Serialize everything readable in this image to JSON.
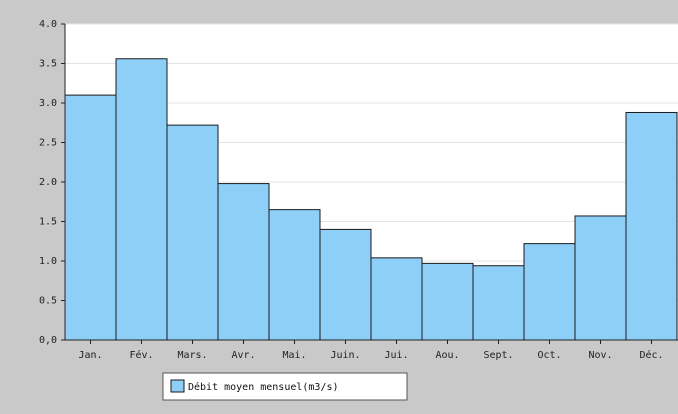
{
  "chart_data": {
    "type": "bar",
    "title": "",
    "xlabel": "",
    "ylabel": "",
    "categories": [
      "Jan.",
      "Fév.",
      "Mars.",
      "Avr.",
      "Mai.",
      "Juin.",
      "Jui.",
      "Aou.",
      "Sept.",
      "Oct.",
      "Nov.",
      "Déc."
    ],
    "series": [
      {
        "name": "Débit moyen mensuel(m3/s)",
        "values": [
          3.1,
          3.56,
          2.72,
          1.98,
          1.65,
          1.4,
          1.04,
          0.97,
          0.94,
          1.22,
          1.57,
          2.88
        ]
      }
    ],
    "ylim": [
      0,
      4.0
    ],
    "yticks": [
      "0,0",
      "0.5",
      "1.0",
      "1.5",
      "2.0",
      "2.5",
      "3.0",
      "3.5",
      "4.0"
    ],
    "grid": true,
    "legend": "bottom-left",
    "colors": {
      "bar": "#8ecff8",
      "bar_edge": "#1a1a1a",
      "plot_bg": "#ffffff",
      "frame_bg": "#c9c9c9",
      "grid": "#e4e4e4"
    }
  }
}
